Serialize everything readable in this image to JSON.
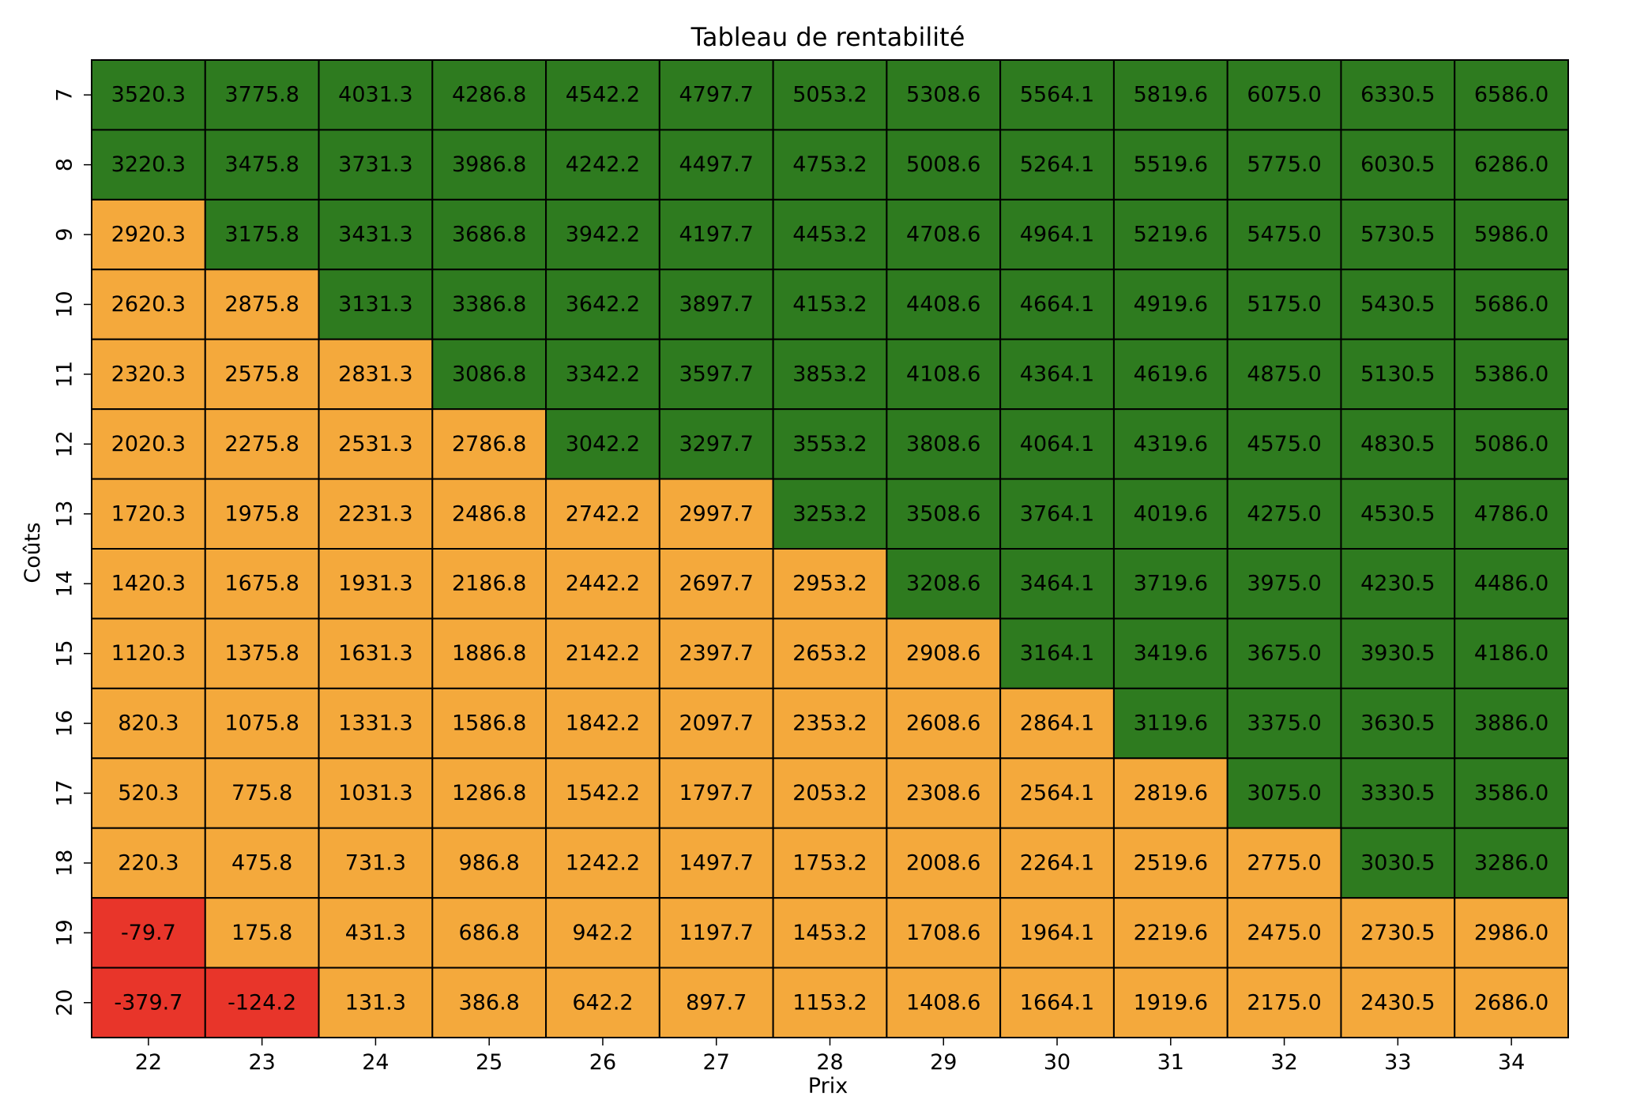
{
  "chart_data": {
    "type": "heatmap",
    "title": "Tableau de rentabilité",
    "xlabel": "Prix",
    "ylabel": "Coûts",
    "x": [
      22,
      23,
      24,
      25,
      26,
      27,
      28,
      29,
      30,
      31,
      32,
      33,
      34
    ],
    "y": [
      7,
      8,
      9,
      10,
      11,
      12,
      13,
      14,
      15,
      16,
      17,
      18,
      19,
      20
    ],
    "values": [
      [
        3520.3,
        3775.8,
        4031.3,
        4286.8,
        4542.2,
        4797.7,
        5053.2,
        5308.6,
        5564.1,
        5819.6,
        6075.0,
        6330.5,
        6586.0
      ],
      [
        3220.3,
        3475.8,
        3731.3,
        3986.8,
        4242.2,
        4497.7,
        4753.2,
        5008.6,
        5264.1,
        5519.6,
        5775.0,
        6030.5,
        6286.0
      ],
      [
        2920.3,
        3175.8,
        3431.3,
        3686.8,
        3942.2,
        4197.7,
        4453.2,
        4708.6,
        4964.1,
        5219.6,
        5475.0,
        5730.5,
        5986.0
      ],
      [
        2620.3,
        2875.8,
        3131.3,
        3386.8,
        3642.2,
        3897.7,
        4153.2,
        4408.6,
        4664.1,
        4919.6,
        5175.0,
        5430.5,
        5686.0
      ],
      [
        2320.3,
        2575.8,
        2831.3,
        3086.8,
        3342.2,
        3597.7,
        3853.2,
        4108.6,
        4364.1,
        4619.6,
        4875.0,
        5130.5,
        5386.0
      ],
      [
        2020.3,
        2275.8,
        2531.3,
        2786.8,
        3042.2,
        3297.7,
        3553.2,
        3808.6,
        4064.1,
        4319.6,
        4575.0,
        4830.5,
        5086.0
      ],
      [
        1720.3,
        1975.8,
        2231.3,
        2486.8,
        2742.2,
        2997.7,
        3253.2,
        3508.6,
        3764.1,
        4019.6,
        4275.0,
        4530.5,
        4786.0
      ],
      [
        1420.3,
        1675.8,
        1931.3,
        2186.8,
        2442.2,
        2697.7,
        2953.2,
        3208.6,
        3464.1,
        3719.6,
        3975.0,
        4230.5,
        4486.0
      ],
      [
        1120.3,
        1375.8,
        1631.3,
        1886.8,
        2142.2,
        2397.7,
        2653.2,
        2908.6,
        3164.1,
        3419.6,
        3675.0,
        3930.5,
        4186.0
      ],
      [
        820.3,
        1075.8,
        1331.3,
        1586.8,
        1842.2,
        2097.7,
        2353.2,
        2608.6,
        2864.1,
        3119.6,
        3375.0,
        3630.5,
        3886.0
      ],
      [
        520.3,
        775.8,
        1031.3,
        1286.8,
        1542.2,
        1797.7,
        2053.2,
        2308.6,
        2564.1,
        2819.6,
        3075.0,
        3330.5,
        3586.0
      ],
      [
        220.3,
        475.8,
        731.3,
        986.8,
        1242.2,
        1497.7,
        1753.2,
        2008.6,
        2264.1,
        2519.6,
        2775.0,
        3030.5,
        3286.0
      ],
      [
        -79.7,
        175.8,
        431.3,
        686.8,
        942.2,
        1197.7,
        1453.2,
        1708.6,
        1964.1,
        2219.6,
        2475.0,
        2730.5,
        2986.0
      ],
      [
        -379.7,
        -124.2,
        131.3,
        386.8,
        642.2,
        897.7,
        1153.2,
        1408.6,
        1664.1,
        1919.6,
        2175.0,
        2430.5,
        2686.0
      ]
    ],
    "color_classes": [
      {
        "color": "#e8352a",
        "max": 0
      },
      {
        "color": "#f4a93c",
        "max": 3000
      },
      {
        "color": "#2e7b1f",
        "max": null
      }
    ],
    "grid": true,
    "legend": "none"
  }
}
